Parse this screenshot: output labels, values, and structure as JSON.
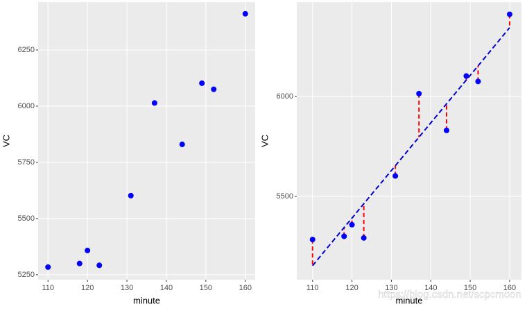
{
  "chart_data": [
    {
      "type": "scatter",
      "x_label": "minute",
      "y_label": "VC",
      "x": [
        110,
        118,
        120,
        123,
        131,
        137,
        144,
        149,
        152,
        160
      ],
      "y": [
        5284,
        5300,
        5358,
        5292,
        5602,
        6014,
        5830,
        6102,
        6075,
        6411
      ],
      "color": "#0000ff",
      "xlim": [
        107.5,
        162.5
      ],
      "xticks": [
        110,
        120,
        130,
        140,
        150,
        160
      ],
      "ylim": [
        5228,
        6463
      ],
      "yticks": [
        5250,
        5500,
        5750,
        6000,
        6250
      ],
      "grid": true
    },
    {
      "type": "regression",
      "x_label": "minute",
      "y_label": "VC",
      "x": [
        110,
        118,
        120,
        123,
        131,
        137,
        144,
        149,
        152,
        160
      ],
      "y": [
        5284,
        5300,
        5358,
        5292,
        5602,
        6014,
        5830,
        6102,
        6075,
        6411
      ],
      "fitted": [
        5153,
        5344,
        5391,
        5463,
        5653,
        5796,
        5963,
        6082,
        6153,
        6344
      ],
      "color": "#0000ff",
      "line_color": "#0000cd",
      "residual_color": "#ff0000",
      "xlim": [
        106,
        163
      ],
      "xticks": [
        110,
        120,
        130,
        140,
        150,
        160
      ],
      "ylim": [
        5083,
        6472
      ],
      "yticks": [
        5500,
        6000
      ],
      "grid": true,
      "watermark": "https://blog.csdn.net/scpcmoon"
    }
  ]
}
